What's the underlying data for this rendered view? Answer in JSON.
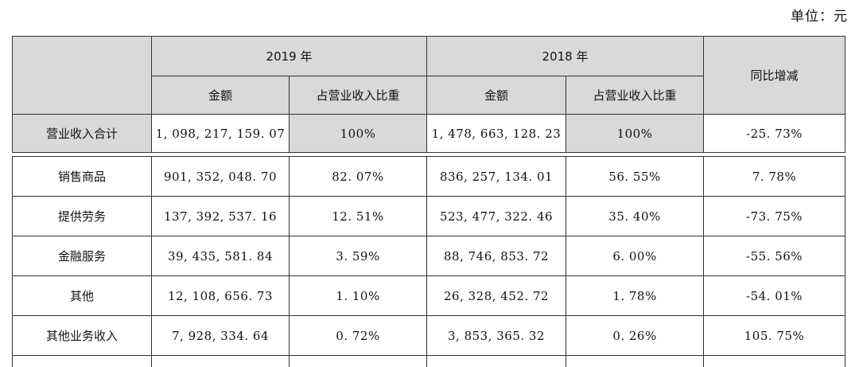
{
  "unit_label": "单位：元",
  "header": {
    "year_2019": "2019 年",
    "year_2018": "2018 年",
    "amount": "金额",
    "ratio": "占营业收入比重",
    "yoy": "同比增减"
  },
  "total": {
    "label": "营业收入合计",
    "amount_2019": "1, 098, 217, 159. 07",
    "ratio_2019": "100%",
    "amount_2018": "1, 478, 663, 128. 23",
    "ratio_2018": "100%",
    "yoy": "-25. 73%"
  },
  "rows": [
    {
      "label": "销售商品",
      "amount_2019": "901, 352, 048. 70",
      "ratio_2019": "82. 07%",
      "amount_2018": "836, 257, 134. 01",
      "ratio_2018": "56. 55%",
      "yoy": "7. 78%"
    },
    {
      "label": "提供劳务",
      "amount_2019": "137, 392, 537. 16",
      "ratio_2019": "12. 51%",
      "amount_2018": "523, 477, 322. 46",
      "ratio_2018": "35. 40%",
      "yoy": "-73. 75%"
    },
    {
      "label": "金融服务",
      "amount_2019": "39, 435, 581. 84",
      "ratio_2019": "3. 59%",
      "amount_2018": "88, 746, 853. 72",
      "ratio_2018": "6. 00%",
      "yoy": "-55. 56%"
    },
    {
      "label": "其他",
      "amount_2019": "12, 108, 656. 73",
      "ratio_2019": "1. 10%",
      "amount_2018": "26, 328, 452. 72",
      "ratio_2018": "1. 78%",
      "yoy": "-54. 01%"
    },
    {
      "label": "其他业务收入",
      "amount_2019": "7, 928, 334. 64",
      "ratio_2019": "0. 72%",
      "amount_2018": "3, 853, 365. 32",
      "ratio_2018": "0. 26%",
      "yoy": "105. 75%"
    }
  ]
}
